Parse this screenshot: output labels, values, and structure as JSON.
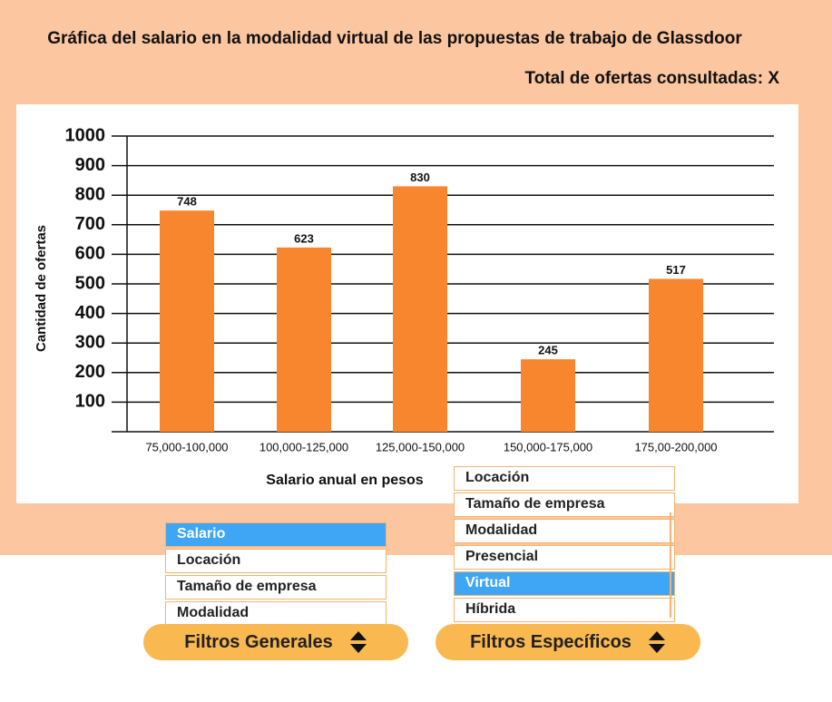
{
  "header": {
    "title": "Gráfica del salario en la modalidad virtual de las propuestas de trabajo de Glassdoor",
    "total": "Total de ofertas consultadas: X"
  },
  "chart_data": {
    "type": "bar",
    "categories": [
      "75,000-100,000",
      "100,000-125,000",
      "125,000-150,000",
      "150,000-175,000",
      "175,00-200,000"
    ],
    "values": [
      748,
      623,
      830,
      245,
      517
    ],
    "color": "#f7862e",
    "ylim": [
      0,
      1000
    ],
    "yticks": [
      100,
      200,
      300,
      400,
      500,
      600,
      700,
      800,
      900,
      1000
    ],
    "grid": true,
    "ylabel": "Cantidad de ofertas",
    "xlabel": "Salario anual en pesos"
  },
  "filters": {
    "general": {
      "label": "Filtros Generales",
      "options": [
        "Salario",
        "Locación",
        "Tamaño de empresa",
        "Modalidad"
      ],
      "selected": 0
    },
    "specific": {
      "label": "Filtros Específicos",
      "options": [
        "Locación",
        "Tamaño de empresa",
        "Modalidad",
        "Presencial",
        "Virtual",
        "Híbrida"
      ],
      "selected": 4
    }
  }
}
